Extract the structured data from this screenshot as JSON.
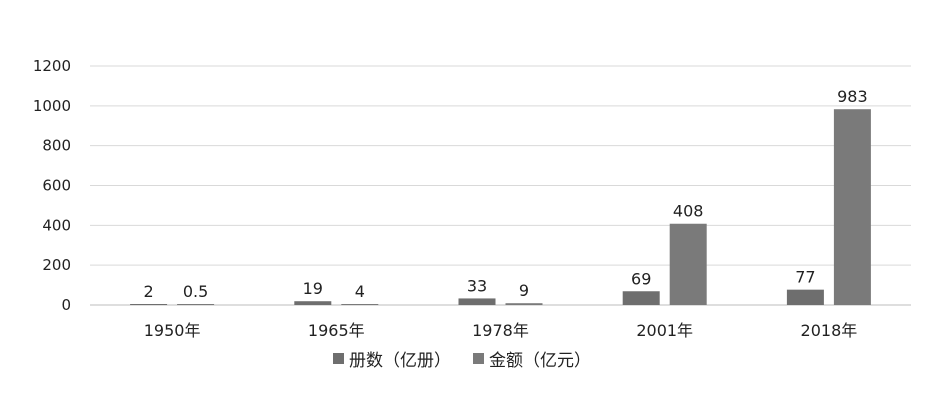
{
  "chart_data": {
    "type": "bar",
    "categories": [
      "1950年",
      "1965年",
      "1978年",
      "2001年",
      "2018年"
    ],
    "series": [
      {
        "name": "册数（亿册）",
        "values": [
          2,
          19,
          33,
          69,
          77
        ],
        "labels": [
          "2",
          "19",
          "33",
          "69",
          "77"
        ],
        "color": "#6e6e6e"
      },
      {
        "name": "金额（亿元）",
        "values": [
          0.5,
          4,
          9,
          408,
          983
        ],
        "labels": [
          "0.5",
          "4",
          "9",
          "408",
          "983"
        ],
        "color": "#7a7a7a"
      }
    ],
    "yticks": [
      "0",
      "200",
      "400",
      "600",
      "800",
      "1000",
      "1200"
    ],
    "ylim": [
      0,
      1200
    ],
    "grid": true,
    "legend_position": "bottom",
    "title": "",
    "xlabel": "",
    "ylabel": ""
  }
}
